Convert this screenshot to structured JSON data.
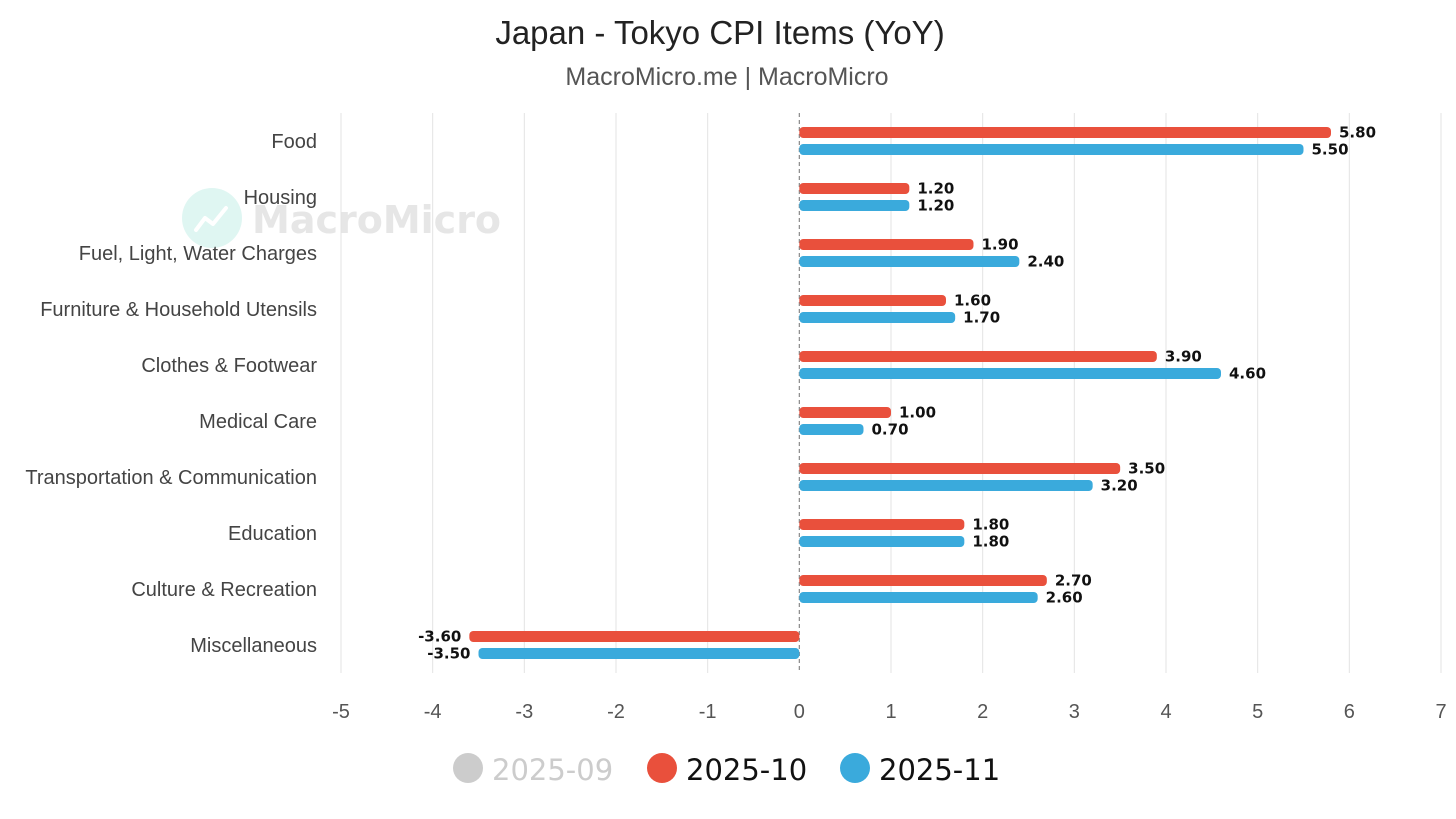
{
  "chart_data": {
    "type": "bar",
    "orientation": "horizontal",
    "title": "Japan - Tokyo CPI Items (YoY)",
    "subtitle": "MacroMicro.me | MacroMicro",
    "watermark": "MacroMicro",
    "categories": [
      "Food",
      "Housing",
      "Fuel, Light, Water Charges",
      "Furniture & Household Utensils",
      "Clothes & Footwear",
      "Medical Care",
      "Transportation & Communication",
      "Education",
      "Culture & Recreation",
      "Miscellaneous"
    ],
    "series": [
      {
        "name": "2025-10",
        "color": "#e9503c",
        "values": [
          5.8,
          1.2,
          1.9,
          1.6,
          3.9,
          1.0,
          3.5,
          1.8,
          2.7,
          -3.6
        ],
        "labels": [
          "5.80",
          "1.20",
          "1.90",
          "1.60",
          "3.90",
          "1.00",
          "3.50",
          "1.80",
          "2.70",
          "-3.60"
        ]
      },
      {
        "name": "2025-11",
        "color": "#3aaadc",
        "values": [
          5.5,
          1.2,
          2.4,
          1.7,
          4.6,
          0.7,
          3.2,
          1.8,
          2.6,
          -3.5
        ],
        "labels": [
          "5.50",
          "1.20",
          "2.40",
          "1.70",
          "4.60",
          "0.70",
          "3.20",
          "1.80",
          "2.60",
          "-3.50"
        ]
      }
    ],
    "legend": {
      "placement": "bottom",
      "items": [
        {
          "name": "2025-09",
          "color": "#cccccc",
          "text_color": "#cccccc",
          "hidden": true
        },
        {
          "name": "2025-10",
          "color": "#e9503c",
          "text_color": "#111111",
          "hidden": false
        },
        {
          "name": "2025-11",
          "color": "#3aaadc",
          "text_color": "#111111",
          "hidden": false
        }
      ]
    },
    "xlim": [
      -5,
      7
    ],
    "xticks": [
      "-5",
      "-4",
      "-3",
      "-2",
      "-1",
      "0",
      "1",
      "2",
      "3",
      "4",
      "5",
      "6",
      "7"
    ],
    "grid": true,
    "zero_line": "dashed"
  }
}
